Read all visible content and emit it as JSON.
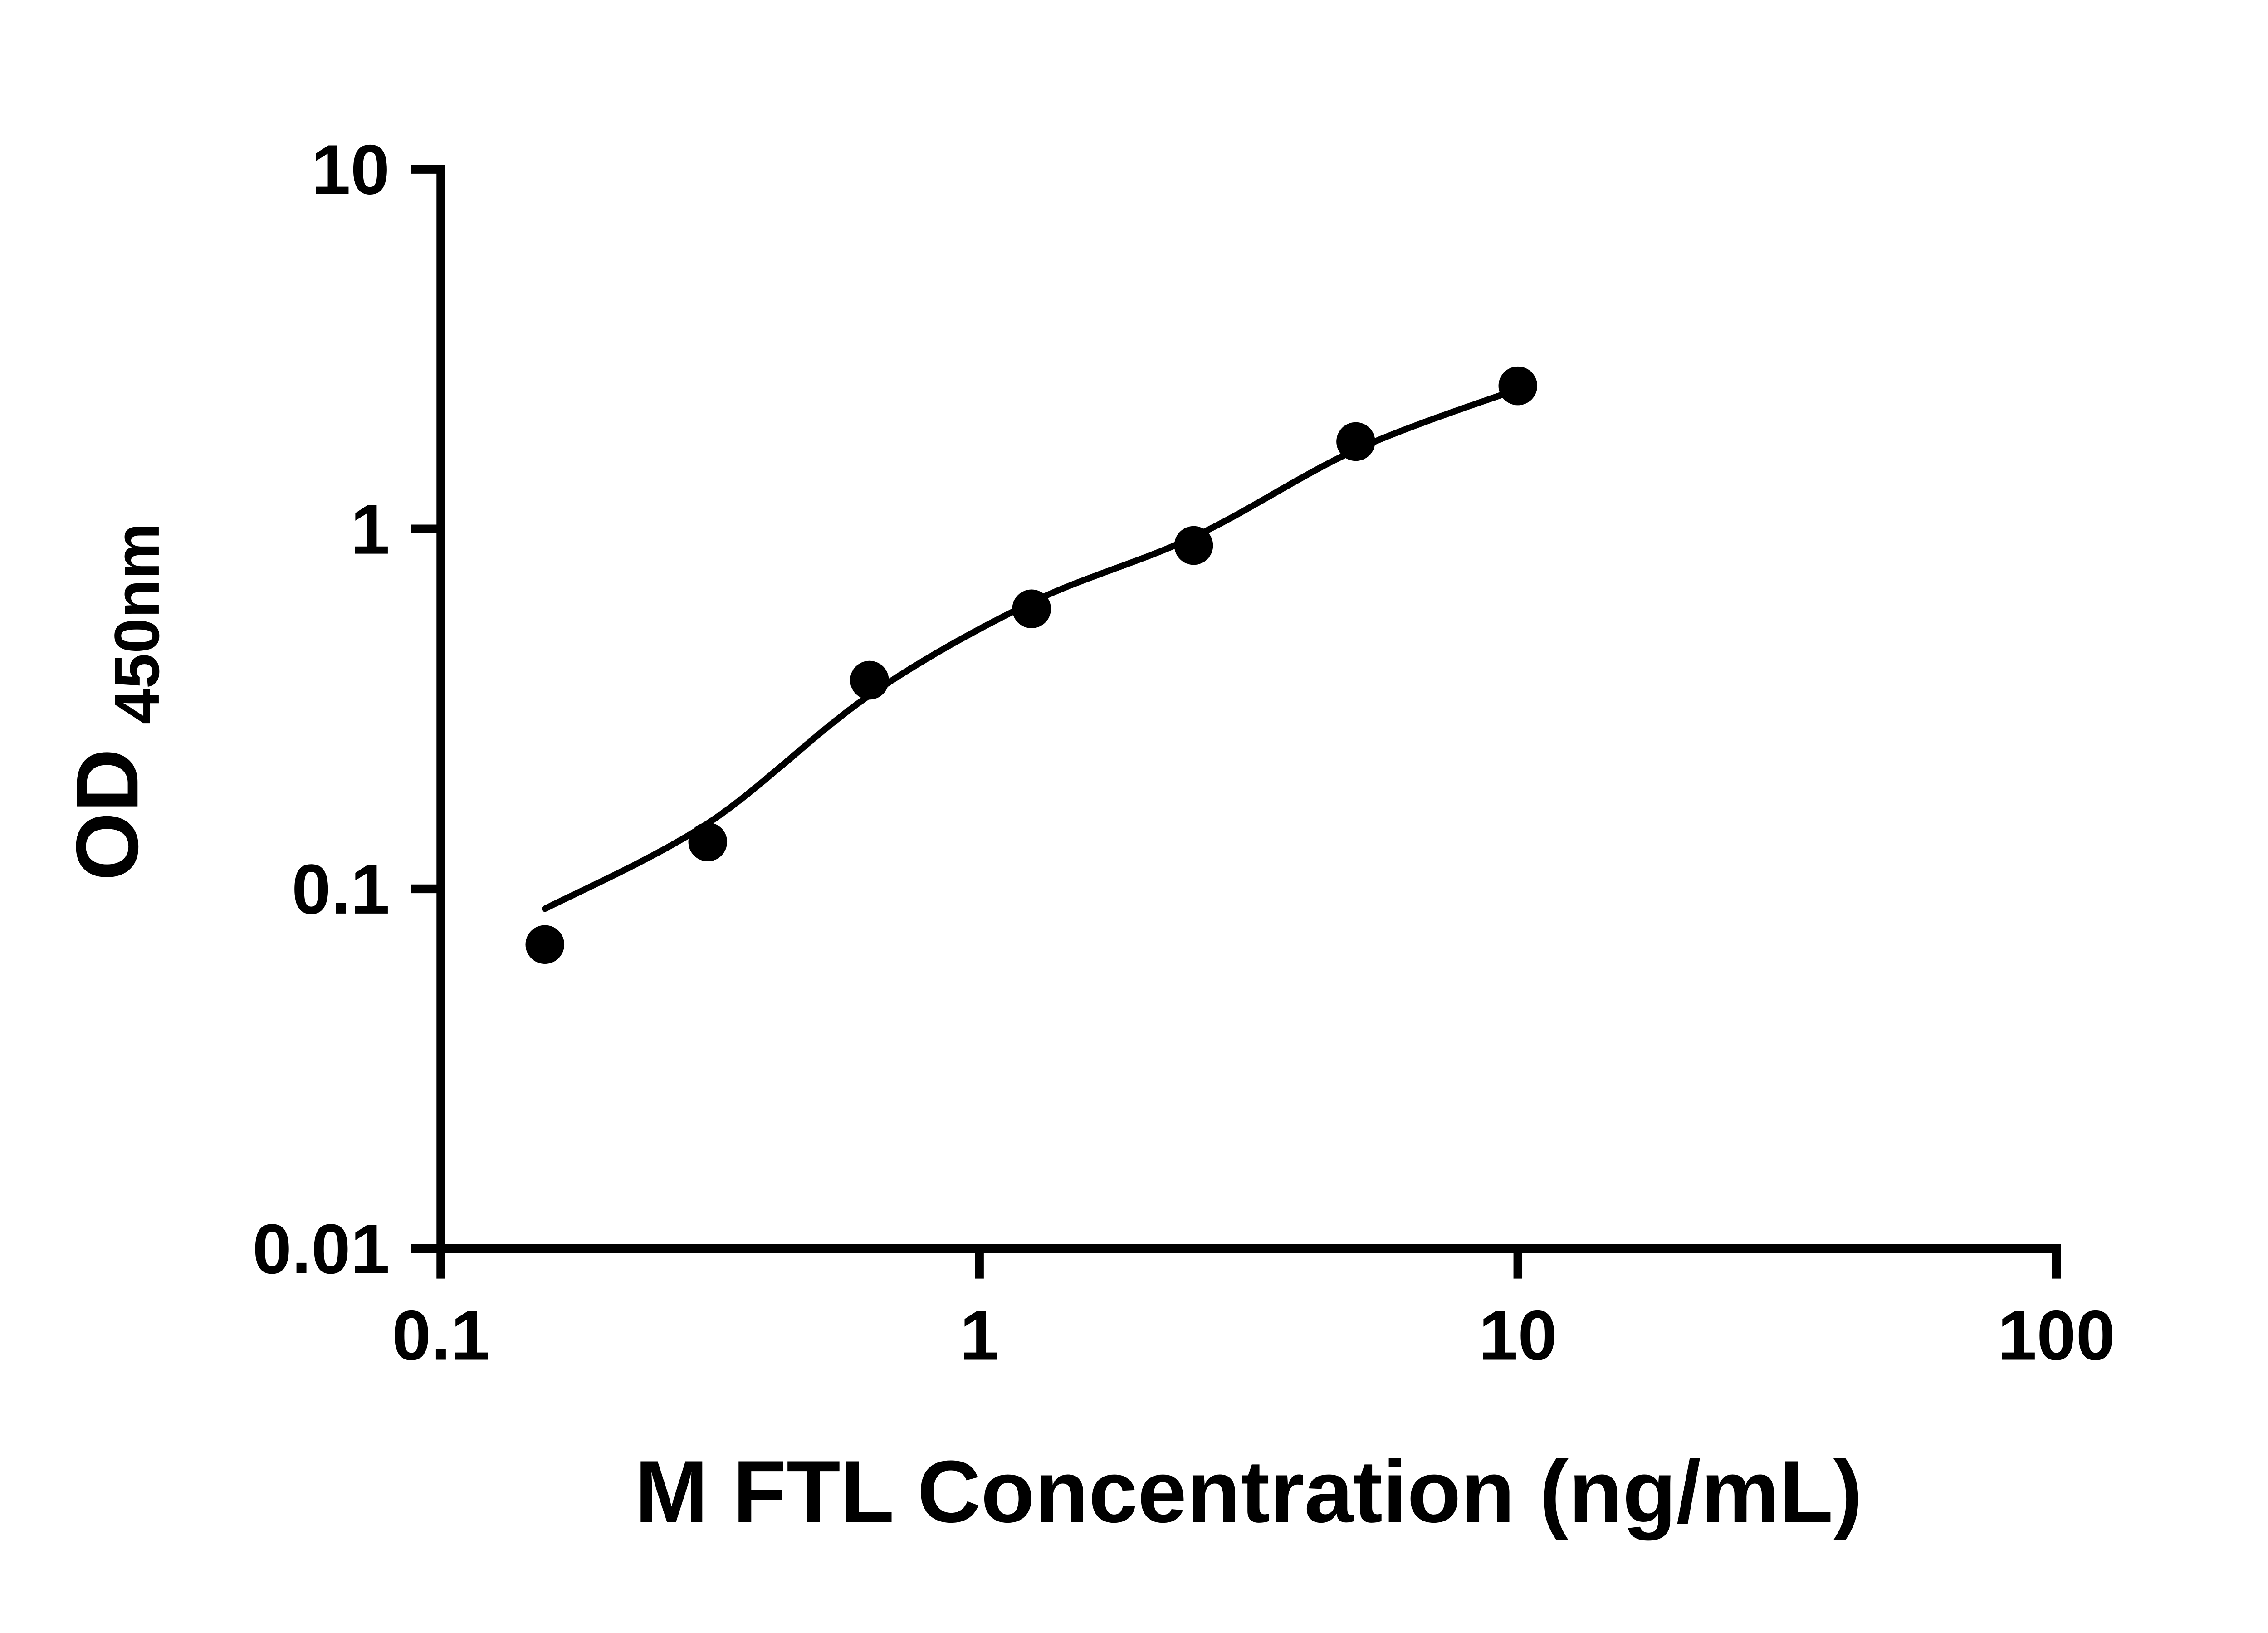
{
  "page": {
    "background": "#ffffff"
  },
  "chart_data": {
    "type": "scatter",
    "title": "",
    "xlabel": "M FTL Concentration (ng/mL)",
    "ylabel": "OD450nm",
    "ylabel_main": "OD",
    "ylabel_sub": "450nm",
    "x_scale": "log",
    "y_scale": "log",
    "xlim": [
      0.1,
      100
    ],
    "ylim": [
      0.01,
      10
    ],
    "x_ticks": [
      0.1,
      1,
      10,
      100
    ],
    "x_tick_labels": [
      "0.1",
      "1",
      "10",
      "100"
    ],
    "y_ticks": [
      0.01,
      0.1,
      1,
      10
    ],
    "y_tick_labels": [
      "0.01",
      "0.1",
      "1",
      "10"
    ],
    "grid": false,
    "legend": false,
    "colors": {
      "axis": "#000000",
      "marker": "#000000",
      "curve": "#000000",
      "text": "#000000",
      "background": "#ffffff"
    },
    "series": [
      {
        "name": "standard-data-points",
        "type": "scatter",
        "x": [
          0.156,
          0.313,
          0.625,
          1.25,
          2.5,
          5,
          10
        ],
        "y": [
          0.07,
          0.135,
          0.38,
          0.6,
          0.9,
          1.75,
          2.5
        ]
      },
      {
        "name": "fitted-curve",
        "type": "line",
        "x": [
          0.156,
          0.313,
          0.625,
          1.25,
          2.5,
          5,
          10
        ],
        "y": [
          0.088,
          0.152,
          0.345,
          0.625,
          0.95,
          1.66,
          2.45
        ]
      }
    ]
  }
}
